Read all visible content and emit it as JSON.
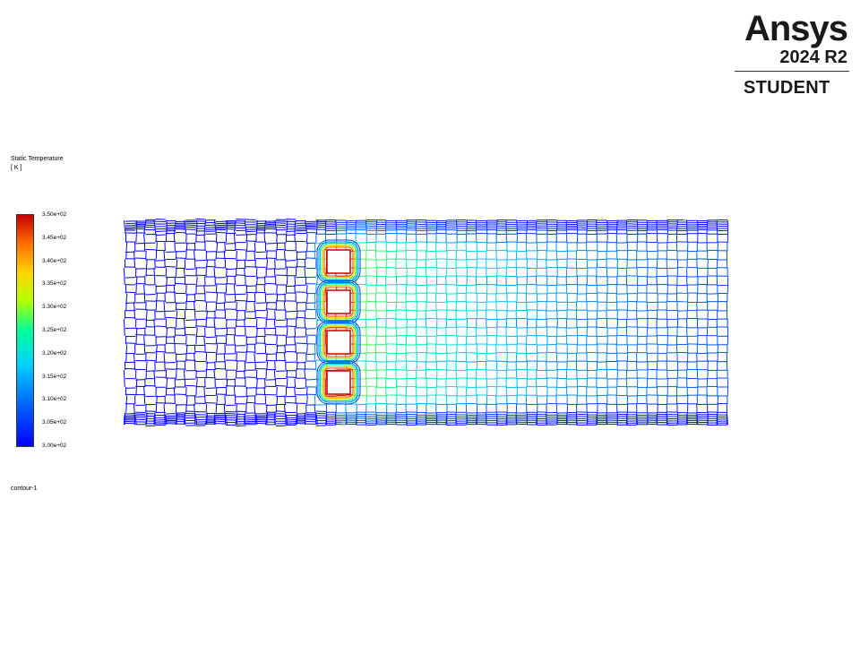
{
  "logo": {
    "brand": "Ansys",
    "version": "2024 R2",
    "edition": "STUDENT"
  },
  "legend": {
    "title": "Static Temperature",
    "unit": "[ K ]",
    "min_value_K": 300,
    "max_value_K": 350,
    "ticks": [
      "3.50e+02",
      "3.45e+02",
      "3.40e+02",
      "3.35e+02",
      "3.30e+02",
      "3.25e+02",
      "3.20e+02",
      "3.15e+02",
      "3.10e+02",
      "3.05e+02",
      "3.00e+02"
    ],
    "colormap": [
      "#0000ff",
      "#0070ff",
      "#00d0ff",
      "#00ff9a",
      "#b6ff00",
      "#ffd400",
      "#ff6a00",
      "#c60000"
    ]
  },
  "contour_name": "contour-1",
  "field": {
    "heated_blocks": 4,
    "mesh_color": "#0000cc"
  }
}
